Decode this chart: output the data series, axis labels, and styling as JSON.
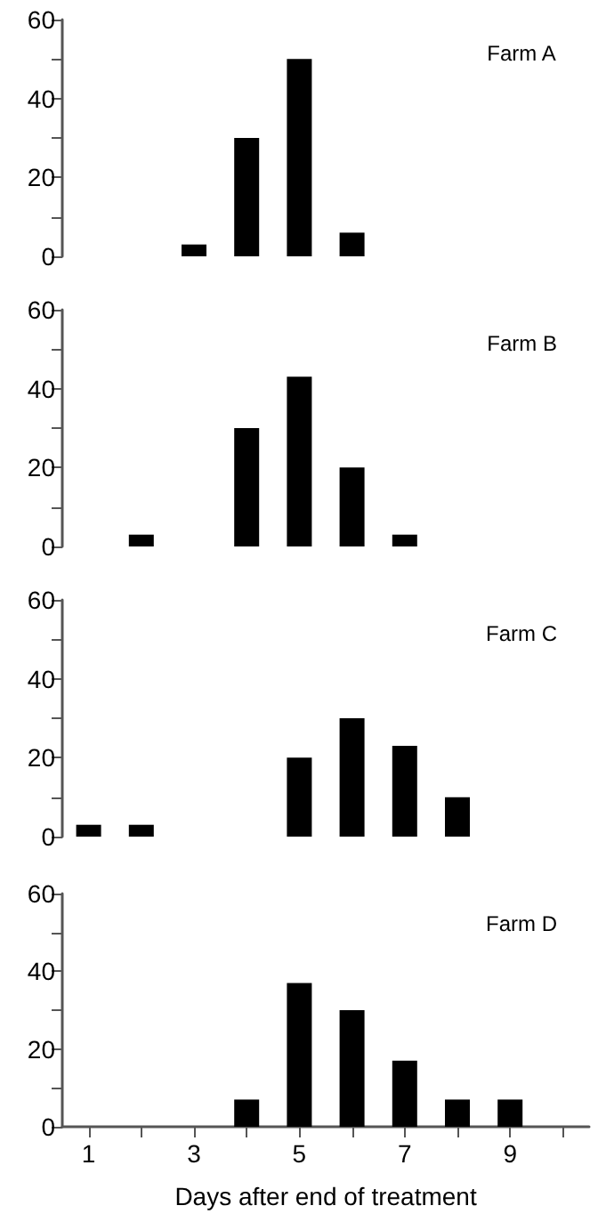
{
  "chart_data": [
    {
      "type": "bar",
      "title": "Farm A",
      "categories": [
        "1",
        null,
        "3",
        null,
        "5",
        null,
        "7",
        null,
        "9",
        null
      ],
      "values": [
        0,
        0,
        3,
        30,
        50,
        6,
        0,
        0,
        0,
        0
      ],
      "color": "#000000",
      "ylim": [
        0,
        60
      ],
      "yticks": [
        0,
        {
          "value": 10,
          "label": null
        },
        20,
        {
          "value": 30,
          "label": null
        },
        40,
        {
          "value": 50,
          "label": null
        },
        60
      ],
      "tick_labels": "y",
      "grid": false
    },
    {
      "type": "bar",
      "title": "Farm B",
      "categories": [
        "1",
        null,
        "3",
        null,
        "5",
        null,
        "7",
        null,
        "9",
        null
      ],
      "values": [
        0,
        3,
        0,
        30,
        43,
        20,
        3,
        0,
        0,
        0
      ],
      "color": "#000000",
      "ylim": [
        0,
        60
      ],
      "yticks": [
        0,
        {
          "value": 10,
          "label": null
        },
        20,
        {
          "value": 30,
          "label": null
        },
        40,
        {
          "value": 50,
          "label": null
        },
        60
      ],
      "tick_labels": "y",
      "grid": false
    },
    {
      "type": "bar",
      "title": "Farm C",
      "categories": [
        "1",
        null,
        "3",
        null,
        "5",
        null,
        "7",
        null,
        "9",
        null
      ],
      "values": [
        3,
        3,
        0,
        0,
        20,
        30,
        23,
        10,
        0,
        0
      ],
      "color": "#000000",
      "ylim": [
        0,
        60
      ],
      "yticks": [
        0,
        {
          "value": 10,
          "label": null
        },
        20,
        {
          "value": 30,
          "label": null
        },
        40,
        {
          "value": 50,
          "label": null
        },
        60
      ],
      "tick_labels": "y",
      "grid": false
    },
    {
      "type": "bar",
      "title": "Farm D",
      "xlabel": "Days after end of treatment",
      "categories": [
        "1",
        null,
        "3",
        null,
        "5",
        null,
        "7",
        null,
        "9",
        null
      ],
      "values": [
        0,
        0,
        0,
        7,
        37,
        30,
        17,
        7,
        7,
        0
      ],
      "color": "#000000",
      "ylim": [
        0,
        60
      ],
      "yticks": [
        0,
        {
          "value": 10,
          "label": null
        },
        20,
        {
          "value": 30,
          "label": null
        },
        40,
        {
          "value": 50,
          "label": null
        },
        60
      ],
      "grid": false
    }
  ]
}
